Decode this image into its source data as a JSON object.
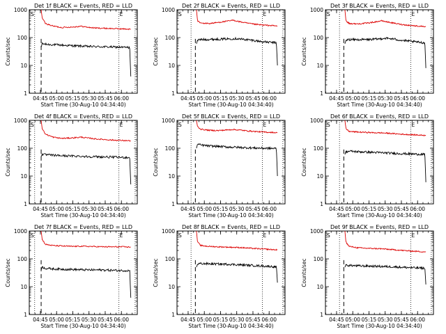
{
  "chart_data": {
    "type": "line",
    "layout": "3x3 grid",
    "x_axis": {
      "label": "Start Time (30-Aug-10 04:34:40)",
      "unit": "minutes after 04:34:40",
      "range": [
        0,
        100
      ],
      "ticks": [
        {
          "x": 10.3,
          "label": "04:45"
        },
        {
          "x": 25.3,
          "label": "05:00"
        },
        {
          "x": 40.3,
          "label": "05:15"
        },
        {
          "x": 55.3,
          "label": "05:30"
        },
        {
          "x": 70.3,
          "label": "05:45"
        },
        {
          "x": 85.3,
          "label": "06:00"
        }
      ]
    },
    "y_axis": {
      "label": "Counts/sec",
      "scale": "log",
      "range": [
        1,
        1000
      ],
      "tick_labels": [
        "1",
        "10",
        "100",
        "1000"
      ]
    },
    "colors": {
      "events": "#000000",
      "lld": "#dd0000"
    },
    "panels": [
      {
        "title": "Det 1f BLACK = Events, RED = LLD",
        "markers": [
          "S",
          "E"
        ],
        "lines": {
          "dotted": [
            5,
            83,
            98
          ],
          "dashed": 11
        },
        "x_start": 11,
        "x_end": 94,
        "series": [
          {
            "name": "Events",
            "color": "#000000",
            "x": [
              11,
              12,
              16,
              25,
              35,
              45,
              55,
              65,
              75,
              85,
              93,
              94
            ],
            "y": [
              45,
              60,
              57,
              55,
              52,
              50,
              48,
              47,
              46,
              45,
              44,
              4
            ]
          },
          {
            "name": "LLD",
            "color": "#dd0000",
            "x": [
              11,
              12,
              15,
              22,
              30,
              40,
              48,
              55,
              62,
              70,
              78,
              86,
              94
            ],
            "y": [
              1000,
              500,
              320,
              260,
              230,
              240,
              255,
              232,
              220,
              215,
              210,
              205,
              200
            ]
          }
        ]
      },
      {
        "title": "Det 2f BLACK = Events, RED = LLD",
        "markers": [
          "S",
          "E"
        ],
        "lines": {
          "dotted": [
            13,
            79,
            98
          ],
          "dashed": 17
        },
        "x_start": 18,
        "x_end": 93,
        "series": [
          {
            "name": "Events",
            "color": "#000000",
            "x": [
              18,
              19,
              22,
              30,
              40,
              48,
              55,
              60,
              70,
              80,
              92,
              93
            ],
            "y": [
              60,
              80,
              85,
              86,
              88,
              90,
              92,
              88,
              80,
              70,
              65,
              10
            ]
          },
          {
            "name": "LLD",
            "color": "#dd0000",
            "x": [
              18,
              19,
              22,
              30,
              38,
              45,
              52,
              58,
              65,
              72,
              80,
              88,
              93
            ],
            "y": [
              1000,
              400,
              330,
              320,
              350,
              380,
              420,
              370,
              330,
              300,
              280,
              270,
              260
            ]
          }
        ]
      },
      {
        "title": "Det 3f BLACK = Events, RED = LLD",
        "markers": [
          "S",
          "E"
        ],
        "lines": {
          "dotted": [
            13,
            79,
            98
          ],
          "dashed": 17
        },
        "x_start": 18,
        "x_end": 93,
        "series": [
          {
            "name": "Events",
            "color": "#000000",
            "x": [
              18,
              19,
              22,
              30,
              40,
              48,
              55,
              62,
              70,
              80,
              92,
              93
            ],
            "y": [
              60,
              80,
              85,
              84,
              85,
              88,
              95,
              90,
              80,
              72,
              65,
              8
            ]
          },
          {
            "name": "LLD",
            "color": "#dd0000",
            "x": [
              18,
              19,
              22,
              30,
              38,
              45,
              52,
              58,
              65,
              72,
              80,
              88,
              93
            ],
            "y": [
              1000,
              400,
              320,
              310,
              330,
              360,
              400,
              360,
              320,
              290,
              270,
              255,
              250
            ]
          }
        ]
      },
      {
        "title": "Det 4f BLACK = Events, RED = LLD",
        "markers": [
          "S",
          "E"
        ],
        "lines": {
          "dotted": [
            5,
            83,
            98
          ],
          "dashed": 11
        },
        "x_start": 11,
        "x_end": 94,
        "series": [
          {
            "name": "Events",
            "color": "#000000",
            "x": [
              11,
              12,
              16,
              25,
              35,
              45,
              55,
              65,
              75,
              85,
              93,
              94
            ],
            "y": [
              50,
              60,
              58,
              55,
              53,
              52,
              50,
              49,
              48,
              47,
              46,
              5
            ]
          },
          {
            "name": "LLD",
            "color": "#dd0000",
            "x": [
              11,
              12,
              15,
              22,
              30,
              40,
              48,
              55,
              62,
              70,
              78,
              86,
              94
            ],
            "y": [
              1000,
              500,
              320,
              250,
              225,
              235,
              250,
              230,
              215,
              205,
              195,
              190,
              185
            ]
          }
        ]
      },
      {
        "title": "Det 5f BLACK = Events, RED = LLD",
        "markers": [
          "S",
          "E"
        ],
        "lines": {
          "dotted": [
            13,
            79,
            98
          ],
          "dashed": 17
        },
        "x_start": 18,
        "x_end": 93,
        "series": [
          {
            "name": "Events",
            "color": "#000000",
            "x": [
              18,
              19,
              22,
              30,
              40,
              48,
              55,
              62,
              70,
              80,
              92,
              93
            ],
            "y": [
              100,
              140,
              130,
              120,
              115,
              110,
              108,
              105,
              102,
              100,
              98,
              10
            ]
          },
          {
            "name": "LLD",
            "color": "#dd0000",
            "x": [
              18,
              19,
              22,
              30,
              38,
              45,
              52,
              58,
              65,
              72,
              80,
              88,
              93
            ],
            "y": [
              1000,
              600,
              480,
              440,
              430,
              450,
              470,
              450,
              420,
              400,
              380,
              370,
              360
            ]
          }
        ]
      },
      {
        "title": "Det 6f BLACK = Events, RED = LLD",
        "markers": [
          "S",
          "E"
        ],
        "lines": {
          "dotted": [
            13,
            79,
            98
          ],
          "dashed": 17
        },
        "x_start": 18,
        "x_end": 93,
        "series": [
          {
            "name": "Events",
            "color": "#000000",
            "x": [
              18,
              19,
              22,
              30,
              40,
              48,
              55,
              62,
              70,
              80,
              92,
              93
            ],
            "y": [
              60,
              75,
              78,
              75,
              72,
              70,
              68,
              66,
              64,
              62,
              60,
              6
            ]
          },
          {
            "name": "LLD",
            "color": "#dd0000",
            "x": [
              18,
              19,
              22,
              30,
              38,
              45,
              52,
              58,
              65,
              72,
              80,
              88,
              93
            ],
            "y": [
              1000,
              500,
              400,
              380,
              370,
              360,
              355,
              345,
              330,
              315,
              305,
              295,
              290
            ]
          }
        ]
      },
      {
        "title": "Det 7f BLACK = Events, RED = LLD",
        "markers": [
          "S",
          "E"
        ],
        "lines": {
          "dotted": [
            5,
            83,
            98
          ],
          "dashed": 11
        },
        "x_start": 11,
        "x_end": 94,
        "series": [
          {
            "name": "Events",
            "color": "#000000",
            "x": [
              11,
              12,
              16,
              25,
              35,
              45,
              55,
              65,
              75,
              85,
              93,
              94
            ],
            "y": [
              40,
              50,
              45,
              43,
              42,
              41,
              40,
              40,
              39,
              38,
              38,
              4
            ]
          },
          {
            "name": "LLD",
            "color": "#dd0000",
            "x": [
              11,
              12,
              15,
              22,
              30,
              40,
              48,
              55,
              62,
              70,
              78,
              86,
              94
            ],
            "y": [
              1000,
              500,
              330,
              300,
              290,
              280,
              285,
              280,
              275,
              270,
              270,
              270,
              265
            ]
          }
        ]
      },
      {
        "title": "Det 8f BLACK = Events, RED = LLD",
        "markers": [
          "S",
          "E"
        ],
        "lines": {
          "dotted": [
            13,
            79,
            98
          ],
          "dashed": 17
        },
        "x_start": 18,
        "x_end": 93,
        "series": [
          {
            "name": "Events",
            "color": "#000000",
            "x": [
              18,
              19,
              22,
              30,
              40,
              48,
              55,
              62,
              70,
              80,
              92,
              93
            ],
            "y": [
              50,
              65,
              68,
              66,
              65,
              64,
              62,
              60,
              58,
              55,
              52,
              14
            ]
          },
          {
            "name": "LLD",
            "color": "#dd0000",
            "x": [
              18,
              19,
              22,
              30,
              38,
              45,
              52,
              58,
              65,
              72,
              80,
              88,
              93
            ],
            "y": [
              1000,
              400,
              300,
              280,
              270,
              265,
              260,
              255,
              245,
              235,
              225,
              215,
              210
            ]
          }
        ]
      },
      {
        "title": "Det 9f BLACK = Events, RED = LLD",
        "markers": [
          "S",
          "E"
        ],
        "lines": {
          "dotted": [
            13,
            79,
            98
          ],
          "dashed": 17
        },
        "x_start": 18,
        "x_end": 93,
        "series": [
          {
            "name": "Events",
            "color": "#000000",
            "x": [
              18,
              19,
              22,
              30,
              40,
              48,
              55,
              62,
              70,
              80,
              92,
              93
            ],
            "y": [
              50,
              60,
              58,
              56,
              55,
              54,
              53,
              52,
              50,
              48,
              46,
              12
            ]
          },
          {
            "name": "LLD",
            "color": "#dd0000",
            "x": [
              18,
              19,
              22,
              30,
              38,
              45,
              52,
              58,
              65,
              72,
              80,
              88,
              93
            ],
            "y": [
              1000,
              400,
              280,
              250,
              240,
              235,
              230,
              220,
              210,
              200,
              190,
              182,
              178
            ]
          }
        ]
      }
    ]
  }
}
